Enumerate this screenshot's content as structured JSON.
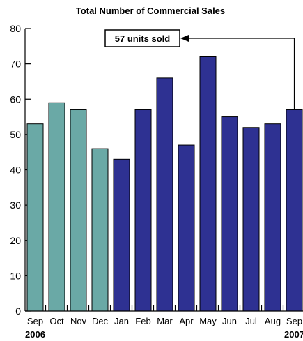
{
  "chart_data": {
    "type": "bar",
    "title": "Total Number of Commercial Sales",
    "categories": [
      "Sep",
      "Oct",
      "Nov",
      "Dec",
      "Jan",
      "Feb",
      "Mar",
      "Apr",
      "May",
      "Jun",
      "Jul",
      "Aug",
      "Sep"
    ],
    "values": [
      53,
      59,
      57,
      46,
      43,
      57,
      66,
      47,
      72,
      55,
      52,
      53,
      57
    ],
    "year_groups": [
      "2006",
      "2006",
      "2006",
      "2006",
      "2007",
      "2007",
      "2007",
      "2007",
      "2007",
      "2007",
      "2007",
      "2007",
      "2007"
    ],
    "year_labels": {
      "start": "2006",
      "end": "2007"
    },
    "ylim": [
      0,
      80
    ],
    "yticks": [
      0,
      10,
      20,
      30,
      40,
      50,
      60,
      70,
      80
    ],
    "xlabel": "",
    "ylabel": "",
    "grid": false,
    "colors": {
      "2006": "#6aa9a6",
      "2007": "#2e3192",
      "outline": "#000000"
    },
    "annotation": {
      "text": "57 units sold",
      "target_index": 12
    }
  }
}
